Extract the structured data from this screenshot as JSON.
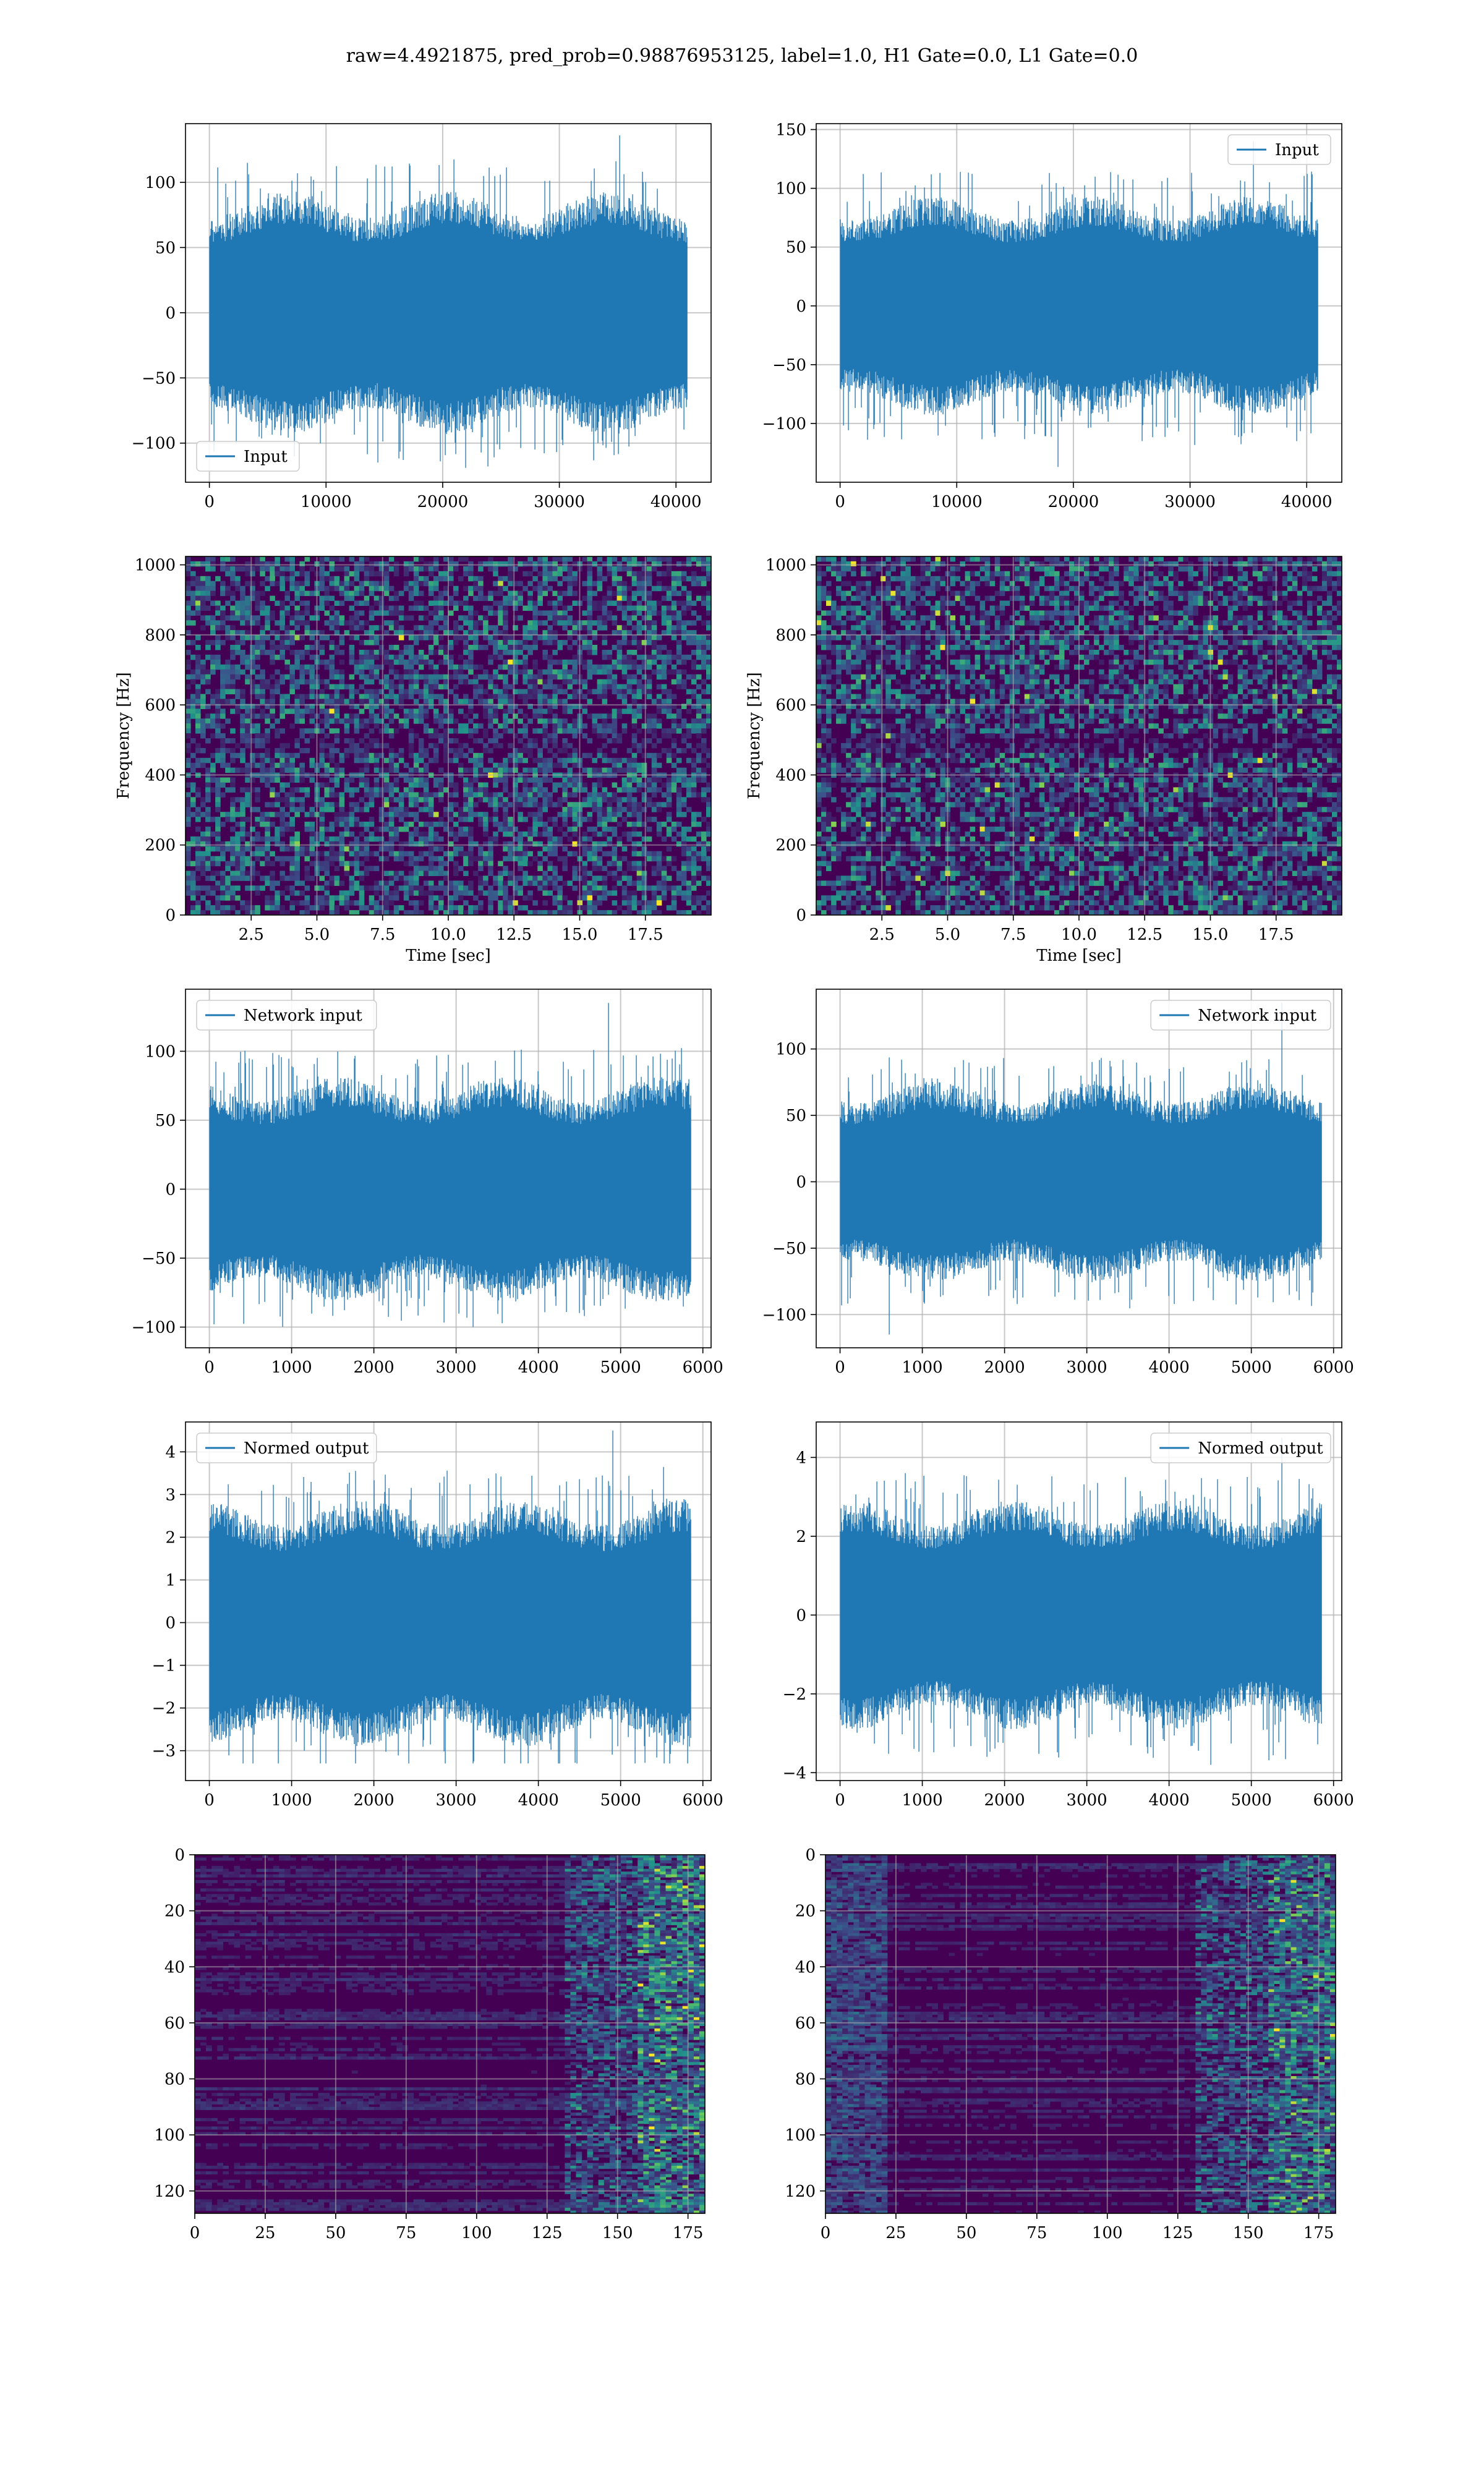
{
  "figure": {
    "title": "raw=4.4921875, pred_prob=0.98876953125, label=1.0, H1 Gate=0.0, L1 Gate=0.0",
    "colors": {
      "line": "#1f77b4",
      "grid": "#b0b0b0",
      "viridis_dark": "#440154",
      "viridis_mid": "#21918c",
      "viridis_bright": "#fde725"
    }
  },
  "chart_data": [
    {
      "id": "input-h1",
      "type": "line",
      "title": "",
      "xlabel": "",
      "ylabel": "",
      "xlim": [
        -2048,
        43008
      ],
      "ylim": [
        -130,
        145
      ],
      "xticks": [
        0,
        10000,
        20000,
        30000,
        40000
      ],
      "yticks": [
        -100,
        -50,
        0,
        50,
        100
      ],
      "series": [
        {
          "name": "Input",
          "n_samples": 40960,
          "sigma": 32,
          "max": 136,
          "min": -119
        }
      ],
      "legend": "lower-left",
      "grid": true
    },
    {
      "id": "input-l1",
      "type": "line",
      "title": "",
      "xlabel": "",
      "ylabel": "",
      "xlim": [
        -2048,
        43008
      ],
      "ylim": [
        -150,
        155
      ],
      "xticks": [
        0,
        10000,
        20000,
        30000,
        40000
      ],
      "yticks": [
        -100,
        -50,
        0,
        50,
        100,
        150
      ],
      "series": [
        {
          "name": "Input",
          "n_samples": 40960,
          "sigma": 32,
          "max": 140,
          "min": -137
        }
      ],
      "legend": "upper-right",
      "grid": true
    },
    {
      "id": "spec-h1",
      "type": "heatmap",
      "title": "",
      "xlabel": "Time [sec]",
      "ylabel": "Frequency [Hz]",
      "xlim": [
        0,
        20
      ],
      "ylim": [
        0,
        1024
      ],
      "xticks": [
        2.5,
        5.0,
        7.5,
        10.0,
        12.5,
        15.0,
        17.5
      ],
      "yticks": [
        0,
        200,
        400,
        600,
        800,
        1000
      ],
      "colormap": "viridis",
      "grid": true
    },
    {
      "id": "spec-l1",
      "type": "heatmap",
      "title": "",
      "xlabel": "Time [sec]",
      "ylabel": "Frequency [Hz]",
      "xlim": [
        0,
        20
      ],
      "ylim": [
        0,
        1024
      ],
      "xticks": [
        2.5,
        5.0,
        7.5,
        10.0,
        12.5,
        15.0,
        17.5
      ],
      "yticks": [
        0,
        200,
        400,
        600,
        800,
        1000
      ],
      "colormap": "viridis",
      "grid": true
    },
    {
      "id": "net-h1",
      "type": "line",
      "title": "",
      "xlabel": "",
      "ylabel": "",
      "xlim": [
        -290,
        6100
      ],
      "ylim": [
        -115,
        145
      ],
      "xticks": [
        0,
        1000,
        2000,
        3000,
        4000,
        5000,
        6000
      ],
      "yticks": [
        -100,
        -50,
        0,
        50,
        100
      ],
      "series": [
        {
          "name": "Network input",
          "n_samples": 5860,
          "sigma": 28,
          "max": 135,
          "min": -100
        }
      ],
      "legend": "upper-left",
      "grid": true
    },
    {
      "id": "net-l1",
      "type": "line",
      "title": "",
      "xlabel": "",
      "ylabel": "",
      "xlim": [
        -290,
        6100
      ],
      "ylim": [
        -125,
        145
      ],
      "xticks": [
        0,
        1000,
        2000,
        3000,
        4000,
        5000,
        6000
      ],
      "yticks": [
        -100,
        -50,
        0,
        50,
        100
      ],
      "series": [
        {
          "name": "Network input",
          "n_samples": 5860,
          "sigma": 26,
          "max": 135,
          "min": -115
        }
      ],
      "legend": "upper-right",
      "grid": true
    },
    {
      "id": "norm-h1",
      "type": "line",
      "title": "",
      "xlabel": "",
      "ylabel": "",
      "xlim": [
        -290,
        6100
      ],
      "ylim": [
        -3.7,
        4.7
      ],
      "xticks": [
        0,
        1000,
        2000,
        3000,
        4000,
        5000,
        6000
      ],
      "yticks": [
        -3,
        -2,
        -1,
        0,
        1,
        2,
        3,
        4
      ],
      "series": [
        {
          "name": "Normed output",
          "n_samples": 5860,
          "sigma": 1.0,
          "max": 4.5,
          "min": -3.3
        }
      ],
      "legend": "upper-left",
      "grid": true
    },
    {
      "id": "norm-l1",
      "type": "line",
      "title": "",
      "xlabel": "",
      "ylabel": "",
      "xlim": [
        -290,
        6100
      ],
      "ylim": [
        -4.2,
        4.9
      ],
      "xticks": [
        0,
        1000,
        2000,
        3000,
        4000,
        5000,
        6000
      ],
      "yticks": [
        -4,
        -2,
        0,
        2,
        4
      ],
      "series": [
        {
          "name": "Normed output",
          "n_samples": 5860,
          "sigma": 1.0,
          "max": 4.5,
          "min": -3.8
        }
      ],
      "legend": "upper-right",
      "grid": true
    },
    {
      "id": "feat-h1",
      "type": "heatmap",
      "title": "",
      "xlabel": "",
      "ylabel": "",
      "xlim": [
        0,
        181
      ],
      "ylim": [
        128,
        0
      ],
      "xticks": [
        0,
        25,
        50,
        75,
        100,
        125,
        150,
        175
      ],
      "yticks": [
        0,
        20,
        40,
        60,
        80,
        100,
        120
      ],
      "colormap": "viridis",
      "grid": true
    },
    {
      "id": "feat-l1",
      "type": "heatmap",
      "title": "",
      "xlabel": "",
      "ylabel": "",
      "xlim": [
        0,
        181
      ],
      "ylim": [
        128,
        0
      ],
      "xticks": [
        0,
        25,
        50,
        75,
        100,
        125,
        150,
        175
      ],
      "yticks": [
        0,
        20,
        40,
        60,
        80,
        100,
        120
      ],
      "colormap": "viridis",
      "grid": true
    }
  ]
}
